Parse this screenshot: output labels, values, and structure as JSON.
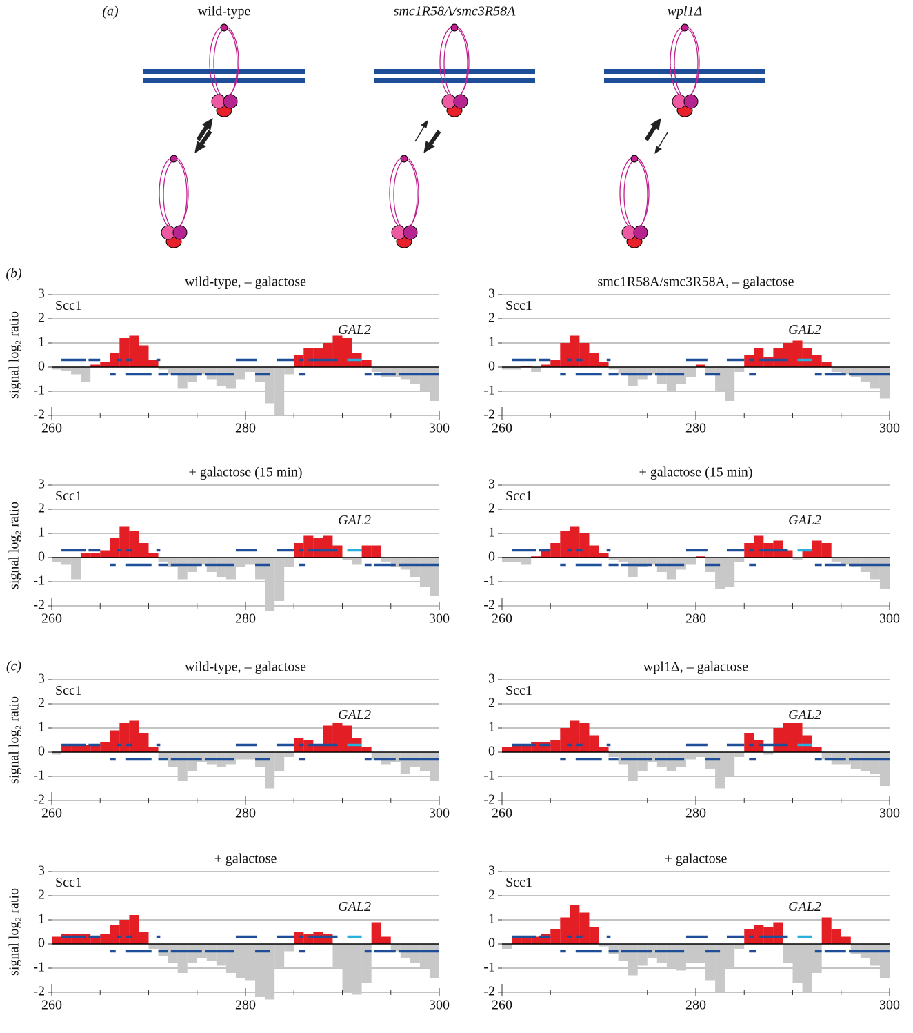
{
  "panel_labels": [
    "(a)",
    "(b)",
    "(c)"
  ],
  "diagram": {
    "labels": [
      "wild-type",
      "smc1R58A/smc3R58A",
      "wpl1Δ"
    ]
  },
  "colors": {
    "positive": "#e31e24",
    "negative": "#c8c8c8",
    "gene": "#1f4e99",
    "gal2": "#2ab0dc",
    "scc1": "#e31e24"
  },
  "gene_track": {
    "top": [
      [
        261,
        263.5
      ],
      [
        263.8,
        265
      ],
      [
        266.7,
        267.2
      ],
      [
        267.7,
        268.3
      ],
      [
        270.8,
        271.2
      ],
      [
        279,
        281.2
      ],
      [
        283.2,
        285
      ],
      [
        285.5,
        286
      ],
      [
        286.5,
        289.5
      ]
    ],
    "bottom": [
      [
        266,
        266.6
      ],
      [
        267.6,
        270.3
      ],
      [
        271,
        272
      ],
      [
        272.3,
        275.5
      ],
      [
        275.8,
        278.8
      ],
      [
        281,
        282.5
      ],
      [
        285.5,
        286.2
      ],
      [
        292.3,
        293
      ],
      [
        293.3,
        295.5
      ],
      [
        295.8,
        300
      ]
    ],
    "gal2": [
      290.5,
      292
    ]
  },
  "chart_data": [
    {
      "type": "bar",
      "title": "wild-type, – galactose",
      "ylabel": "signal log₂ ratio",
      "series_label": "Scc1",
      "gene_label": "GAL2",
      "xlim": [
        260,
        300
      ],
      "xticks": [
        260,
        280,
        300
      ],
      "xminorticks": [
        265,
        270,
        275,
        285,
        290,
        295
      ],
      "ylim": [
        -2,
        3
      ],
      "yticks": [
        -2,
        -1,
        0,
        1,
        2,
        3
      ],
      "grid": true,
      "x": [
        260.5,
        261.5,
        262.5,
        263.5,
        264.5,
        265.5,
        266.5,
        267.5,
        268.5,
        269.5,
        270.5,
        271.5,
        272.5,
        273.5,
        274.5,
        275.5,
        276.5,
        277.5,
        278.5,
        279.5,
        280.5,
        281.5,
        282.5,
        283.5,
        284.5,
        285.5,
        286.5,
        287.5,
        288.5,
        289.5,
        290.5,
        291.5,
        292.5,
        293.5,
        294.5,
        295.5,
        296.5,
        297.5,
        298.5,
        299.5
      ],
      "values": [
        -0.1,
        -0.15,
        -0.3,
        -0.6,
        0.1,
        0.2,
        0.6,
        1.2,
        1.3,
        0.9,
        0.3,
        -0.1,
        -0.3,
        -0.9,
        -0.6,
        -0.3,
        -0.5,
        -0.8,
        -0.9,
        -0.5,
        -0.2,
        -0.6,
        -1.5,
        -2.0,
        -0.3,
        0.5,
        0.8,
        0.8,
        1.0,
        1.3,
        1.2,
        0.6,
        0.3,
        -0.2,
        -0.4,
        -0.4,
        -0.5,
        -0.7,
        -1.0,
        -1.4
      ]
    },
    {
      "type": "bar",
      "title": "smc1R58A/smc3R58A, – galactose",
      "series_label": "Scc1",
      "gene_label": "GAL2",
      "xlim": [
        260,
        300
      ],
      "xticks": [
        260,
        280,
        300
      ],
      "xminorticks": [
        265,
        270,
        275,
        285,
        290,
        295
      ],
      "ylim": [
        -2,
        3
      ],
      "yticks": [
        -2,
        -1,
        0,
        1,
        2,
        3
      ],
      "grid": true,
      "x": [
        260.5,
        261.5,
        262.5,
        263.5,
        264.5,
        265.5,
        266.5,
        267.5,
        268.5,
        269.5,
        270.5,
        271.5,
        272.5,
        273.5,
        274.5,
        275.5,
        276.5,
        277.5,
        278.5,
        279.5,
        280.5,
        281.5,
        282.5,
        283.5,
        284.5,
        285.5,
        286.5,
        287.5,
        288.5,
        289.5,
        290.5,
        291.5,
        292.5,
        293.5,
        294.5,
        295.5,
        296.5,
        297.5,
        298.5,
        299.5
      ],
      "values": [
        -0.1,
        -0.1,
        0.05,
        -0.2,
        0.1,
        0.3,
        1.0,
        1.3,
        1.0,
        0.6,
        0.2,
        -0.1,
        -0.3,
        -0.8,
        -0.5,
        -0.3,
        -0.7,
        -1.0,
        -0.7,
        -0.4,
        0.1,
        -0.3,
        -1.0,
        -1.4,
        -0.2,
        0.5,
        0.8,
        0.4,
        0.8,
        1.0,
        1.1,
        0.8,
        0.5,
        0.2,
        -0.2,
        -0.3,
        -0.4,
        -0.6,
        -0.9,
        -1.3
      ]
    },
    {
      "type": "bar",
      "title": "+ galactose (15 min)",
      "ylabel": "signal log₂ ratio",
      "series_label": "Scc1",
      "gene_label": "GAL2",
      "xlim": [
        260,
        300
      ],
      "xticks": [
        260,
        280,
        300
      ],
      "xminorticks": [
        265,
        270,
        275,
        285,
        290,
        295
      ],
      "ylim": [
        -2,
        3
      ],
      "yticks": [
        -2,
        -1,
        0,
        1,
        2,
        3
      ],
      "grid": true,
      "x": [
        260.5,
        261.5,
        262.5,
        263.5,
        264.5,
        265.5,
        266.5,
        267.5,
        268.5,
        269.5,
        270.5,
        271.5,
        272.5,
        273.5,
        274.5,
        275.5,
        276.5,
        277.5,
        278.5,
        279.5,
        280.5,
        281.5,
        282.5,
        283.5,
        284.5,
        285.5,
        286.5,
        287.5,
        288.5,
        289.5,
        290.5,
        291.5,
        292.5,
        293.5,
        294.5,
        295.5,
        296.5,
        297.5,
        298.5,
        299.5
      ],
      "values": [
        -0.2,
        -0.3,
        -0.9,
        0.2,
        0.2,
        0.3,
        0.8,
        1.3,
        1.1,
        0.6,
        0.2,
        -0.2,
        -0.4,
        -0.9,
        -0.6,
        -0.3,
        -0.6,
        -0.8,
        -0.9,
        -0.4,
        -0.3,
        -0.9,
        -2.2,
        -1.8,
        -0.4,
        0.6,
        0.9,
        0.8,
        0.9,
        0.5,
        -0.1,
        -0.3,
        0.5,
        0.5,
        -0.2,
        -0.4,
        -0.5,
        -0.8,
        -1.2,
        -1.6
      ]
    },
    {
      "type": "bar",
      "title": "+ galactose (15 min)",
      "series_label": "Scc1",
      "gene_label": "GAL2",
      "xlim": [
        260,
        300
      ],
      "xticks": [
        260,
        280,
        300
      ],
      "xminorticks": [
        265,
        270,
        275,
        285,
        290,
        295
      ],
      "ylim": [
        -2,
        3
      ],
      "yticks": [
        -2,
        -1,
        0,
        1,
        2,
        3
      ],
      "grid": true,
      "x": [
        260.5,
        261.5,
        262.5,
        263.5,
        264.5,
        265.5,
        266.5,
        267.5,
        268.5,
        269.5,
        270.5,
        271.5,
        272.5,
        273.5,
        274.5,
        275.5,
        276.5,
        277.5,
        278.5,
        279.5,
        280.5,
        281.5,
        282.5,
        283.5,
        284.5,
        285.5,
        286.5,
        287.5,
        288.5,
        289.5,
        290.5,
        291.5,
        292.5,
        293.5,
        294.5,
        295.5,
        296.5,
        297.5,
        298.5,
        299.5
      ],
      "values": [
        -0.2,
        -0.2,
        -0.3,
        0.05,
        0.3,
        0.6,
        1.1,
        1.3,
        1.0,
        0.5,
        0.2,
        -0.1,
        -0.2,
        -0.8,
        -0.4,
        -0.3,
        -0.6,
        -0.9,
        -0.5,
        -0.3,
        0.05,
        -0.6,
        -1.3,
        -1.2,
        -0.2,
        0.6,
        0.9,
        0.6,
        0.7,
        0.3,
        -0.1,
        0.3,
        0.7,
        0.6,
        -0.2,
        -0.3,
        -0.4,
        -0.6,
        -0.9,
        -1.3
      ]
    },
    {
      "type": "bar",
      "title": "wild-type, – galactose",
      "ylabel": "signal log₂ ratio",
      "series_label": "Scc1",
      "gene_label": "GAL2",
      "xlim": [
        260,
        300
      ],
      "xticks": [
        260,
        280,
        300
      ],
      "xminorticks": [
        265,
        270,
        275,
        285,
        290,
        295
      ],
      "ylim": [
        -2,
        3
      ],
      "yticks": [
        -2,
        -1,
        0,
        1,
        2,
        3
      ],
      "grid": true,
      "x": [
        260.5,
        261.5,
        262.5,
        263.5,
        264.5,
        265.5,
        266.5,
        267.5,
        268.5,
        269.5,
        270.5,
        271.5,
        272.5,
        273.5,
        274.5,
        275.5,
        276.5,
        277.5,
        278.5,
        279.5,
        280.5,
        281.5,
        282.5,
        283.5,
        284.5,
        285.5,
        286.5,
        287.5,
        288.5,
        289.5,
        290.5,
        291.5,
        292.5,
        293.5,
        294.5,
        295.5,
        296.5,
        297.5,
        298.5,
        299.5
      ],
      "values": [
        -0.1,
        0.3,
        0.3,
        0.3,
        0.3,
        0.4,
        0.9,
        1.2,
        1.3,
        0.8,
        0.2,
        -0.3,
        -0.6,
        -1.2,
        -0.8,
        -0.4,
        -0.5,
        -0.6,
        -0.5,
        -0.3,
        -0.3,
        -0.6,
        -1.5,
        -0.8,
        -0.2,
        0.6,
        0.5,
        0.3,
        1.1,
        1.2,
        1.1,
        0.6,
        0.2,
        -0.3,
        -0.5,
        -0.4,
        -0.9,
        -0.6,
        -0.8,
        -1.2
      ]
    },
    {
      "type": "bar",
      "title": "wpl1Δ, – galactose",
      "series_label": "Scc1",
      "gene_label": "GAL2",
      "xlim": [
        260,
        300
      ],
      "xticks": [
        260,
        280,
        300
      ],
      "xminorticks": [
        265,
        270,
        275,
        285,
        290,
        295
      ],
      "ylim": [
        -2,
        3
      ],
      "yticks": [
        -2,
        -1,
        0,
        1,
        2,
        3
      ],
      "grid": true,
      "x": [
        260.5,
        261.5,
        262.5,
        263.5,
        264.5,
        265.5,
        266.5,
        267.5,
        268.5,
        269.5,
        270.5,
        271.5,
        272.5,
        273.5,
        274.5,
        275.5,
        276.5,
        277.5,
        278.5,
        279.5,
        280.5,
        281.5,
        282.5,
        283.5,
        284.5,
        285.5,
        286.5,
        287.5,
        288.5,
        289.5,
        290.5,
        291.5,
        292.5,
        293.5,
        294.5,
        295.5,
        296.5,
        297.5,
        298.5,
        299.5
      ],
      "values": [
        0.2,
        0.3,
        0.3,
        0.4,
        0.4,
        0.5,
        1.0,
        1.3,
        1.2,
        0.7,
        0.2,
        -0.2,
        -0.5,
        -1.2,
        -0.8,
        -0.4,
        -0.6,
        -0.8,
        -0.6,
        -0.3,
        -0.2,
        -0.7,
        -1.5,
        -1.0,
        -0.2,
        0.8,
        0.5,
        -0.1,
        1.0,
        1.2,
        1.2,
        0.7,
        0.2,
        -0.3,
        -0.5,
        -0.5,
        -0.7,
        -0.8,
        -0.9,
        -1.4
      ]
    },
    {
      "type": "bar",
      "title": "+ galactose",
      "ylabel": "signal log₂ ratio",
      "series_label": "Scc1",
      "gene_label": "GAL2",
      "xlim": [
        260,
        300
      ],
      "xticks": [
        260,
        280,
        300
      ],
      "xminorticks": [
        265,
        270,
        275,
        285,
        290,
        295
      ],
      "ylim": [
        -2,
        3
      ],
      "yticks": [
        -2,
        -1,
        0,
        1,
        2,
        3
      ],
      "grid": true,
      "x": [
        260.5,
        261.5,
        262.5,
        263.5,
        264.5,
        265.5,
        266.5,
        267.5,
        268.5,
        269.5,
        270.5,
        271.5,
        272.5,
        273.5,
        274.5,
        275.5,
        276.5,
        277.5,
        278.5,
        279.5,
        280.5,
        281.5,
        282.5,
        283.5,
        284.5,
        285.5,
        286.5,
        287.5,
        288.5,
        289.5,
        290.5,
        291.5,
        292.5,
        293.5,
        294.5,
        295.5,
        296.5,
        297.5,
        298.5,
        299.5
      ],
      "values": [
        0.3,
        0.4,
        0.4,
        0.4,
        0.3,
        0.4,
        0.8,
        1.0,
        1.2,
        0.5,
        -0.2,
        -0.5,
        -0.8,
        -1.2,
        -0.8,
        -0.6,
        -0.7,
        -0.9,
        -1.2,
        -1.4,
        -1.5,
        -2.2,
        -2.3,
        -1.0,
        -0.3,
        0.5,
        0.4,
        0.5,
        0.4,
        -1.0,
        -2.0,
        -2.1,
        -1.6,
        0.9,
        0.3,
        -0.3,
        -0.6,
        -0.8,
        -1.0,
        -1.4
      ]
    },
    {
      "type": "bar",
      "title": "+ galactose",
      "series_label": "Scc1",
      "gene_label": "GAL2",
      "xlim": [
        260,
        300
      ],
      "xticks": [
        260,
        280,
        300
      ],
      "xminorticks": [
        265,
        270,
        275,
        285,
        290,
        295
      ],
      "ylim": [
        -2,
        3
      ],
      "yticks": [
        -2,
        -1,
        0,
        1,
        2,
        3
      ],
      "grid": true,
      "x": [
        260.5,
        261.5,
        262.5,
        263.5,
        264.5,
        265.5,
        266.5,
        267.5,
        268.5,
        269.5,
        270.5,
        271.5,
        272.5,
        273.5,
        274.5,
        275.5,
        276.5,
        277.5,
        278.5,
        279.5,
        280.5,
        281.5,
        282.5,
        283.5,
        284.5,
        285.5,
        286.5,
        287.5,
        288.5,
        289.5,
        290.5,
        291.5,
        292.5,
        293.5,
        294.5,
        295.5,
        296.5,
        297.5,
        298.5,
        299.5
      ],
      "values": [
        -0.2,
        0.3,
        0.3,
        0.3,
        0.4,
        0.6,
        1.1,
        1.6,
        1.3,
        0.7,
        -0.1,
        -0.4,
        -0.7,
        -1.3,
        -0.9,
        -0.6,
        -0.8,
        -1.0,
        -1.1,
        -0.8,
        -0.8,
        -1.5,
        -2.0,
        -1.0,
        -0.2,
        0.6,
        0.8,
        0.7,
        0.9,
        -0.8,
        -1.6,
        -2.0,
        -1.2,
        1.1,
        0.6,
        0.3,
        -0.4,
        -0.6,
        -0.9,
        -1.4
      ]
    }
  ]
}
